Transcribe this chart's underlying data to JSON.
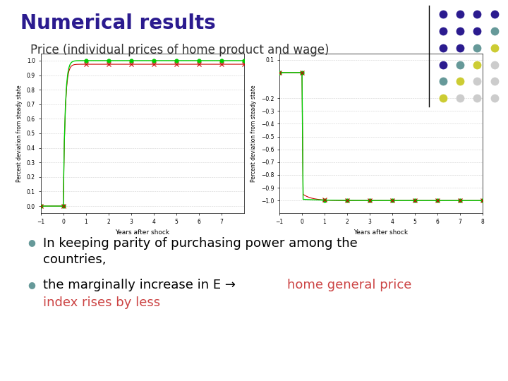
{
  "title": "Numerical results",
  "subtitle": "Price (individual prices of home product and wage)",
  "title_color": "#2B1B8F",
  "subtitle_color": "#333333",
  "background_color": "#ffffff",
  "left_ylabel": "Percent deviation from steady state",
  "right_ylabel": "Percent deviation from steady state",
  "xlabel": "Years after shock",
  "left_ylim": [
    -0.05,
    1.05
  ],
  "left_yticks": [
    0.0,
    0.1,
    0.2,
    0.3,
    0.4,
    0.5,
    0.6,
    0.7,
    0.8,
    0.9,
    1.0
  ],
  "left_xlim": [
    -1,
    8
  ],
  "left_xticks": [
    -1,
    0,
    1,
    2,
    3,
    4,
    5,
    6,
    7
  ],
  "right_ylim": [
    -1.1,
    0.15
  ],
  "right_yticks": [
    0.1,
    -0.2,
    -0.3,
    -0.4,
    -0.5,
    -0.6,
    -0.7,
    -0.8,
    -0.9,
    -1.0
  ],
  "right_xlim": [
    -1,
    8
  ],
  "right_xticks": [
    -1,
    0,
    1,
    2,
    3,
    4,
    5,
    6,
    7,
    8
  ],
  "green_line_color": "#00CC00",
  "red_line_color": "#CC0000",
  "marker_size": 3.5,
  "bullet_color": "#669999",
  "bullet1_line1": "In keeping parity of purchasing power among the",
  "bullet1_line2": "countries,",
  "bullet2_black": "the marginally increase in E → ",
  "bullet2_red1": "home general price",
  "bullet2_red2": "index rises by less",
  "text_fontsize": 13,
  "dot_grid": [
    [
      "#2B1B8F",
      "#2B1B8F",
      "#2B1B8F",
      "#2B1B8F"
    ],
    [
      "#2B1B8F",
      "#2B1B8F",
      "#2B1B8F",
      "#669999"
    ],
    [
      "#2B1B8F",
      "#2B1B8F",
      "#669999",
      "#CCCC33"
    ],
    [
      "#2B1B8F",
      "#669999",
      "#CCCC33",
      "#CCCCCC"
    ],
    [
      "#669999",
      "#CCCC33",
      "#CCCCCC",
      "#CCCCCC"
    ],
    [
      "#CCCC33",
      "#CCCCCC",
      "#CCCCCC",
      "#CCCCCC"
    ]
  ]
}
